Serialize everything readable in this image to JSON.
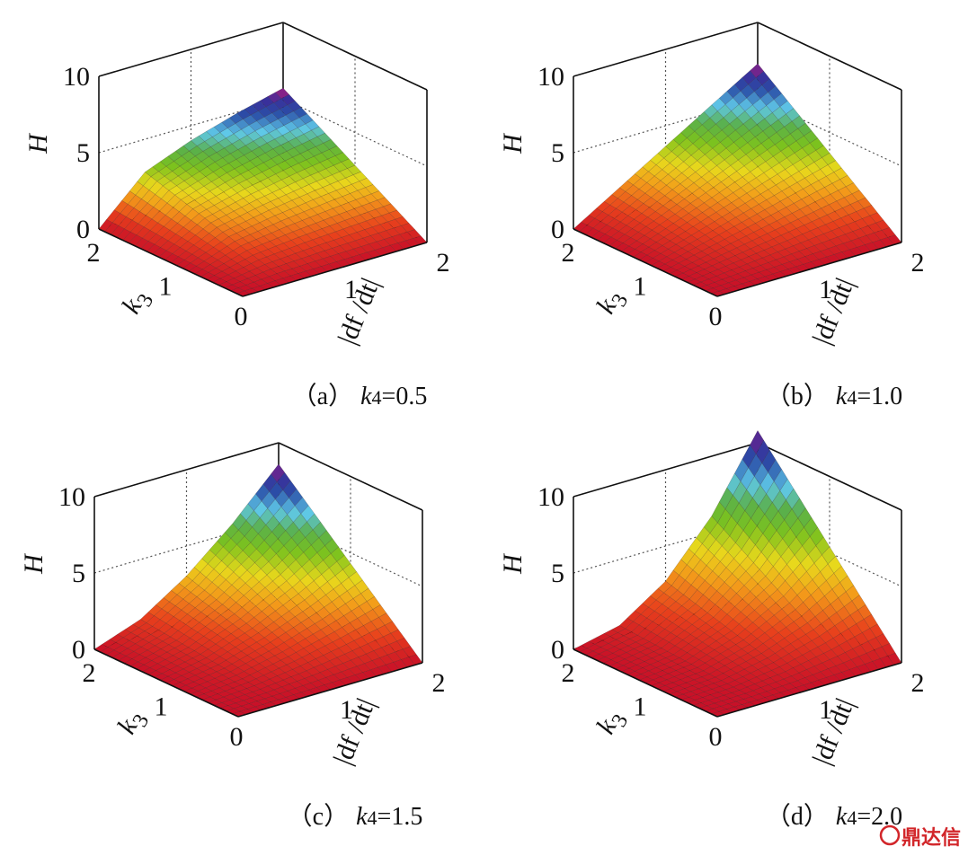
{
  "chart_data": [
    {
      "type": "surface",
      "caption": "（a）",
      "param_symbol": "k",
      "param_sub": "4",
      "param_text": "=0.5",
      "zlabel": "H",
      "ylabel_symbol": "k",
      "ylabel_sub": "3",
      "xlabel": "|df /dt|",
      "x": [
        0,
        0.5,
        1,
        1.5,
        2
      ],
      "y": [
        0,
        0.5,
        1,
        1.5,
        2
      ],
      "z": [
        [
          0,
          0,
          0,
          0,
          0
        ],
        [
          0,
          0.71,
          1.01,
          1.23,
          1.43
        ],
        [
          0,
          1.43,
          2.02,
          2.47,
          2.85
        ],
        [
          0,
          2.14,
          3.02,
          3.7,
          4.28
        ],
        [
          0,
          2.85,
          4.03,
          4.94,
          5.7
        ]
      ],
      "xlim": [
        0,
        2
      ],
      "ylim": [
        0,
        2
      ],
      "zlim": [
        0,
        10
      ],
      "xticks": [
        0,
        1,
        2
      ],
      "yticks": [
        1,
        2
      ],
      "zticks": [
        0,
        5,
        10
      ],
      "grid": true
    },
    {
      "type": "surface",
      "caption": "（b）",
      "param_symbol": "k",
      "param_sub": "4",
      "param_text": "=1.0",
      "zlabel": "H",
      "ylabel_symbol": "k",
      "ylabel_sub": "3",
      "xlabel": "|df /dt|",
      "x": [
        0,
        0.5,
        1,
        1.5,
        2
      ],
      "y": [
        0,
        0.5,
        1,
        1.5,
        2
      ],
      "z": [
        [
          0,
          0,
          0,
          0,
          0
        ],
        [
          0,
          0.46,
          0.91,
          1.37,
          1.83
        ],
        [
          0,
          0.91,
          1.83,
          2.74,
          3.65
        ],
        [
          0,
          1.37,
          2.74,
          4.11,
          5.48
        ],
        [
          0,
          1.83,
          3.65,
          5.48,
          7.3
        ]
      ],
      "xlim": [
        0,
        2
      ],
      "ylim": [
        0,
        2
      ],
      "zlim": [
        0,
        10
      ],
      "xticks": [
        0,
        1,
        2
      ],
      "yticks": [
        1,
        2
      ],
      "zticks": [
        0,
        5,
        10
      ],
      "grid": true
    },
    {
      "type": "surface",
      "caption": "（c）",
      "param_symbol": "k",
      "param_sub": "4",
      "param_text": "=1.5",
      "zlabel": "H",
      "ylabel_symbol": "k",
      "ylabel_sub": "3",
      "xlabel": "|df /dt|",
      "x": [
        0,
        0.5,
        1,
        1.5,
        2
      ],
      "y": [
        0,
        0.5,
        1,
        1.5,
        2
      ],
      "z": [
        [
          0,
          0,
          0,
          0,
          0
        ],
        [
          0,
          0.27,
          0.76,
          1.4,
          2.15
        ],
        [
          0,
          0.54,
          1.52,
          2.79,
          4.3
        ],
        [
          0,
          0.81,
          2.28,
          4.19,
          6.45
        ],
        [
          0,
          1.08,
          3.04,
          5.59,
          8.6
        ]
      ],
      "xlim": [
        0,
        2
      ],
      "ylim": [
        0,
        2
      ],
      "zlim": [
        0,
        10
      ],
      "xticks": [
        0,
        1,
        2
      ],
      "yticks": [
        1,
        2
      ],
      "zticks": [
        0,
        5,
        10
      ],
      "grid": true
    },
    {
      "type": "surface",
      "caption": "（d）",
      "param_symbol": "k",
      "param_sub": "4",
      "param_text": "=2.0",
      "zlabel": "H",
      "ylabel_symbol": "k",
      "ylabel_sub": "3",
      "xlabel": "|df /dt|",
      "x": [
        0,
        0.5,
        1,
        1.5,
        2
      ],
      "y": [
        0,
        0.5,
        1,
        1.5,
        2
      ],
      "z": [
        [
          0,
          0,
          0,
          0,
          0
        ],
        [
          0,
          0.17,
          0.68,
          1.52,
          2.7
        ],
        [
          0,
          0.34,
          1.35,
          3.04,
          5.4
        ],
        [
          0,
          0.51,
          2.03,
          4.56,
          8.1
        ],
        [
          0,
          0.68,
          2.7,
          6.08,
          10.8
        ]
      ],
      "xlim": [
        0,
        2
      ],
      "ylim": [
        0,
        2
      ],
      "zlim": [
        0,
        10
      ],
      "xticks": [
        0,
        1,
        2
      ],
      "yticks": [
        1,
        2
      ],
      "zticks": [
        0,
        5,
        10
      ],
      "grid": true
    }
  ],
  "watermark": "鼎达信"
}
